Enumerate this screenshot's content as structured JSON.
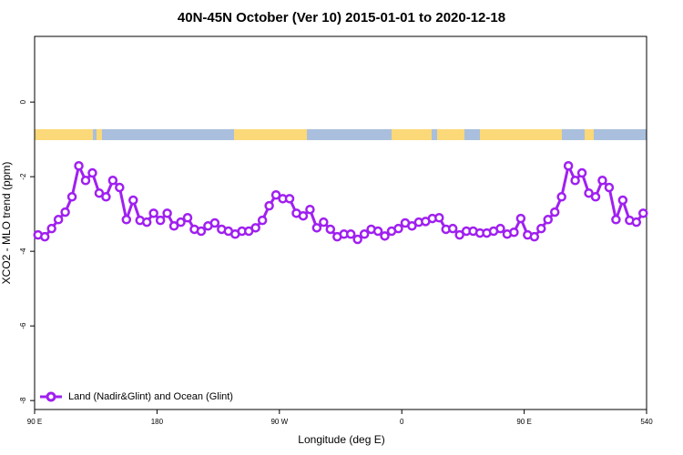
{
  "chart_data": {
    "type": "line",
    "title": "40N-45N October (Ver 10)   2015-01-01 to 2020-12-18",
    "xlabel": "Longitude (deg E)",
    "ylabel": "XCO2 - MLO trend (ppm)",
    "xlim": [
      90,
      540
    ],
    "ylim": [
      -8.24,
      1.76
    ],
    "xticks": [
      {
        "value": 90,
        "label": "90 E"
      },
      180,
      {
        "value": 270,
        "label": "90 W"
      },
      {
        "value": 360,
        "label": "0"
      },
      {
        "value": 450,
        "label": "90 E"
      },
      540
    ],
    "yticks": [
      0,
      -2,
      -4,
      -6,
      -8
    ],
    "legend": "bottom-left",
    "x": [
      92.5,
      97.5,
      102.5,
      107.5,
      112.5,
      117.5,
      122.5,
      127.5,
      132.5,
      137.5,
      142.5,
      147.5,
      152.5,
      157.5,
      162.5,
      167.5,
      172.5,
      177.5,
      182.5,
      187.5,
      192.5,
      197.5,
      202.5,
      207.5,
      212.5,
      217.5,
      222.5,
      227.5,
      232.5,
      237.5,
      242.5,
      247.5,
      252.5,
      257.5,
      262.5,
      267.5,
      272.5,
      277.5,
      282.5,
      287.5,
      292.5,
      297.5,
      302.5,
      307.5,
      312.5,
      317.5,
      322.5,
      327.5,
      332.5,
      337.5,
      342.5,
      347.5,
      352.5,
      357.5,
      362.5,
      367.5,
      372.5,
      377.5,
      382.5,
      387.5,
      392.5,
      397.5,
      402.5,
      407.5,
      412.5,
      417.5,
      422.5,
      427.5,
      432.5,
      437.5,
      442.5,
      447.5,
      452.5,
      457.5,
      462.5,
      467.5,
      472.5,
      477.5,
      482.5,
      487.5,
      492.5,
      497.5,
      502.5,
      507.5,
      512.5,
      517.5,
      522.5,
      527.5,
      532.5,
      537.5
    ],
    "series": [
      {
        "name": "Land (Nadir&Glint) and Ocean (Glint)",
        "color": "#a020f0",
        "values": [
          -3.56,
          -3.61,
          -3.39,
          -3.15,
          -2.95,
          -2.54,
          -1.71,
          -2.1,
          -1.9,
          -2.44,
          -2.54,
          -2.1,
          -2.29,
          -3.15,
          -2.63,
          -3.17,
          -3.22,
          -2.98,
          -3.17,
          -2.98,
          -3.32,
          -3.22,
          -3.1,
          -3.41,
          -3.46,
          -3.32,
          -3.24,
          -3.41,
          -3.46,
          -3.54,
          -3.46,
          -3.46,
          -3.37,
          -3.17,
          -2.78,
          -2.49,
          -2.59,
          -2.59,
          -2.98,
          -3.05,
          -2.88,
          -3.37,
          -3.22,
          -3.41,
          -3.61,
          -3.54,
          -3.54,
          -3.68,
          -3.54,
          -3.41,
          -3.46,
          -3.59,
          -3.46,
          -3.39,
          -3.24,
          -3.32,
          -3.22,
          -3.2,
          -3.12,
          -3.1,
          -3.41,
          -3.39,
          -3.56,
          -3.46,
          -3.46,
          -3.51,
          -3.51,
          -3.46,
          -3.39,
          -3.54,
          -3.49,
          -3.12,
          -3.56,
          -3.61,
          -3.39,
          -3.15,
          -2.95,
          -2.54,
          -1.71,
          -2.1,
          -1.9,
          -2.44,
          -2.54,
          -2.1,
          -2.29,
          -3.15,
          -2.63,
          -3.17,
          -3.22,
          -2.98
        ]
      }
    ]
  }
}
